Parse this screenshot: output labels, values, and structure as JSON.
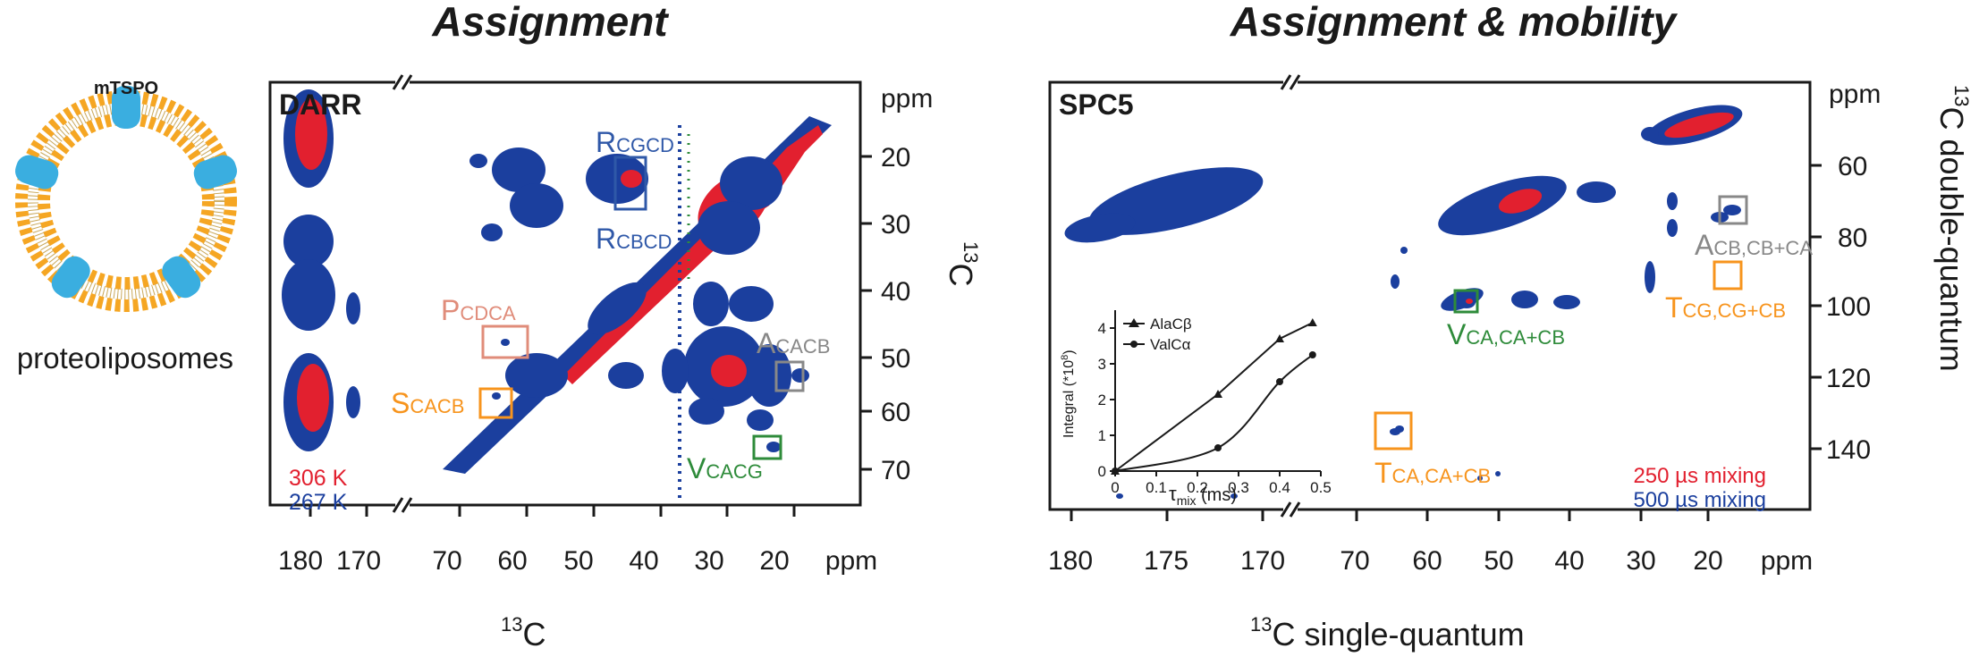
{
  "titles": {
    "left": "Assignment",
    "right": "Assignment & mobility"
  },
  "sample": {
    "protein_label": "mTSPO",
    "caption": "proteoliposomes"
  },
  "left_panel": {
    "experiment": "DARR",
    "x_ticks_left": [
      "180",
      "170"
    ],
    "x_ticks_right": [
      "70",
      "60",
      "50",
      "40",
      "30",
      "20"
    ],
    "x_unit": "ppm",
    "y_ticks": [
      "20",
      "30",
      "40",
      "50",
      "60",
      "70"
    ],
    "y_unit": "ppm",
    "x_axis_label_sup": "13",
    "x_axis_label": "C",
    "y_axis_label_sup": "13",
    "y_axis_label": "C",
    "temps": [
      {
        "text": "306 K",
        "color": "#e2202f"
      },
      {
        "text": "267 K",
        "color": "#1b3f9e"
      }
    ],
    "annotations": [
      {
        "main": "R",
        "sub": "CGCD",
        "color": "#2f58a8"
      },
      {
        "main": "R",
        "sub": "CBCD",
        "color": "#2f58a8"
      },
      {
        "main": "P",
        "sub": "CDCA",
        "color": "#e08c7a"
      },
      {
        "main": "S",
        "sub": "CACB",
        "color": "#f7941d"
      },
      {
        "main": "A",
        "sub": "CACB",
        "color": "#888888"
      },
      {
        "main": "V",
        "sub": "CACG",
        "color": "#2e8b3a"
      }
    ]
  },
  "right_panel": {
    "experiment": "SPC5",
    "x_ticks_left": [
      "180",
      "175",
      "170"
    ],
    "x_ticks_right": [
      "70",
      "60",
      "50",
      "40",
      "30",
      "20"
    ],
    "x_unit": "ppm",
    "y_ticks": [
      "60",
      "80",
      "100",
      "120",
      "140"
    ],
    "y_unit": "ppm",
    "x_axis_label_sup": "13",
    "x_axis_label": "C single-quantum",
    "y_axis_label_sup": "13",
    "y_axis_label": "C double-quantum",
    "mixing": [
      {
        "text": "250 µs mixing",
        "color": "#e2202f"
      },
      {
        "text": "500 µs mixing",
        "color": "#1b3f9e"
      }
    ],
    "annotations": [
      {
        "main": "A",
        "sub": "CB,CB+CA",
        "color": "#888888"
      },
      {
        "main": "T",
        "sub": "CG,CG+CB",
        "color": "#f7941d"
      },
      {
        "main": "V",
        "sub": "CA,CA+CB",
        "color": "#2e8b3a"
      },
      {
        "main": "T",
        "sub": "CA,CA+CB",
        "color": "#f7941d"
      }
    ]
  },
  "chart_data": {
    "type": "line",
    "x": [
      0,
      0.25,
      0.4,
      0.48
    ],
    "series": [
      {
        "name": "AlaCβ",
        "values": [
          0,
          2.15,
          3.7,
          4.15
        ]
      },
      {
        "name": "ValCα",
        "values": [
          0,
          0.65,
          2.5,
          3.25
        ]
      }
    ],
    "xlabel_main": "τ",
    "xlabel_sub": "mix",
    "xlabel_unit": " (ms)",
    "ylabel": "Integral (*10",
    "ylabel_sup": "8",
    "ylabel_end": ")",
    "xlim": [
      0,
      0.5
    ],
    "ylim": [
      0,
      4.5
    ],
    "x_ticks": [
      "0",
      "0.1",
      "0.2",
      "0.3",
      "0.4",
      "0.5"
    ],
    "y_ticks": [
      "0",
      "1",
      "2",
      "3",
      "4"
    ],
    "legend_position": "top-left"
  }
}
